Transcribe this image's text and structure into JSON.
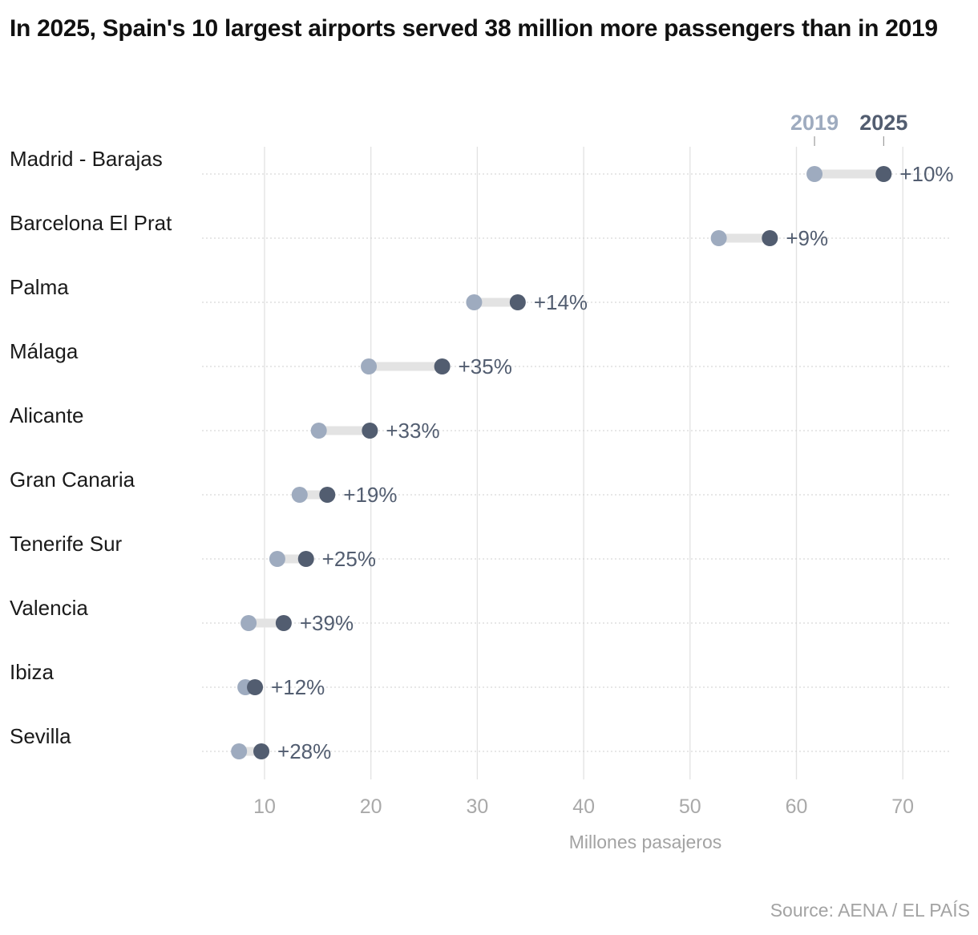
{
  "title": "In 2025, Spain's 10 largest airports served 38 million more passengers than in 2019",
  "source": "Source: AENA / EL PAÍS",
  "chart_data": {
    "type": "dumbbell",
    "xlabel": "Millones pasajeros",
    "xlim": [
      5,
      72
    ],
    "xticks": [
      10,
      20,
      30,
      40,
      50,
      60,
      70
    ],
    "grid": true,
    "legend": {
      "placement": "top",
      "entries": [
        "2019",
        "2025"
      ]
    },
    "colors": {
      "2019": "#9eabbf",
      "2025": "#525d70",
      "connector": "#e3e3e3"
    },
    "categories": [
      "Madrid - Barajas",
      "Barcelona El Prat",
      "Palma",
      "Málaga",
      "Alicante",
      "Gran Canaria",
      "Tenerife Sur",
      "Valencia",
      "Ibiza",
      "Sevilla"
    ],
    "series": [
      {
        "name": "2019",
        "values": [
          61.7,
          52.7,
          29.7,
          19.8,
          15.1,
          13.3,
          11.2,
          8.5,
          8.2,
          7.6
        ]
      },
      {
        "name": "2025",
        "values": [
          68.2,
          57.5,
          33.8,
          26.7,
          19.9,
          15.9,
          13.9,
          11.8,
          9.1,
          9.7
        ]
      }
    ],
    "labels": [
      "+10%",
      "+9%",
      "+14%",
      "+35%",
      "+33%",
      "+19%",
      "+25%",
      "+39%",
      "+12%",
      "+28%"
    ]
  }
}
